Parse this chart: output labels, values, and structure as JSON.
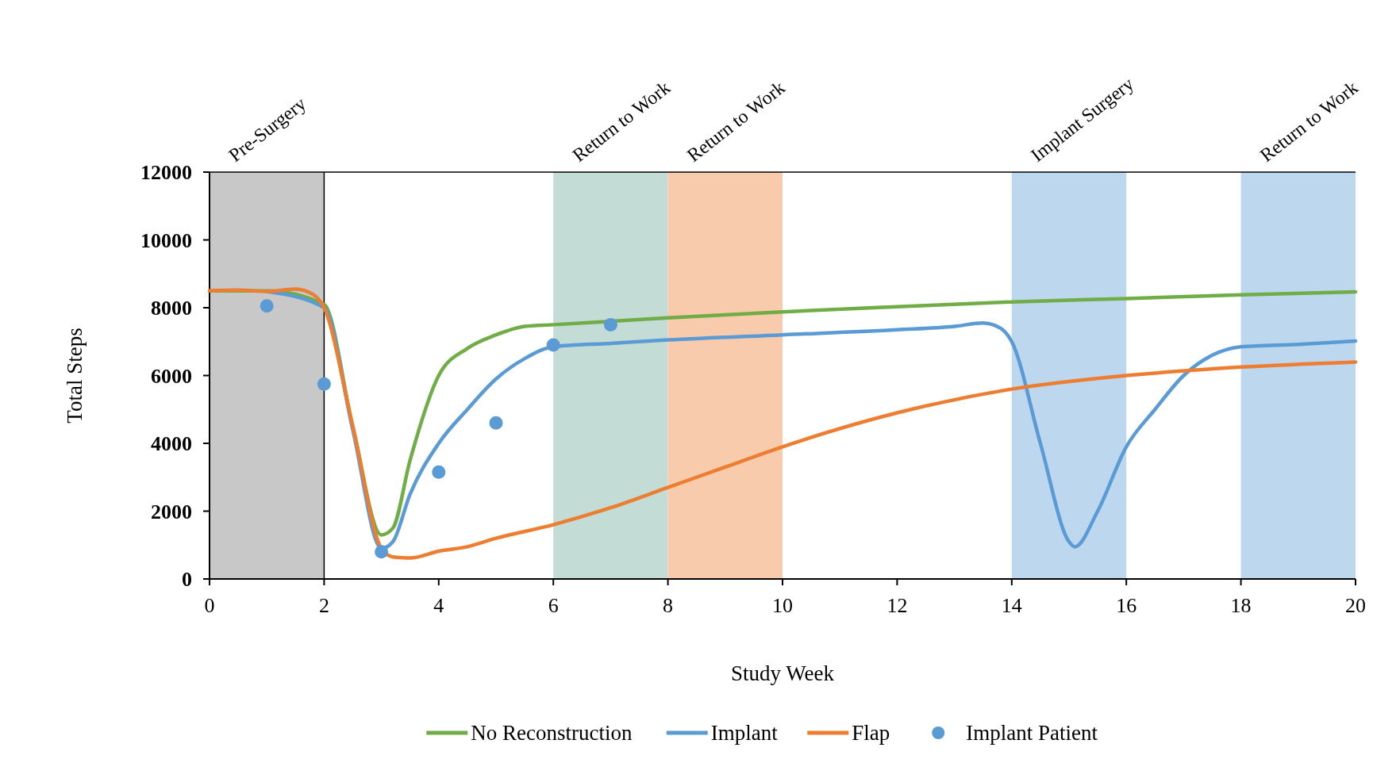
{
  "chart_data": {
    "type": "line",
    "xlabel": "Study Week",
    "ylabel": "Total Steps",
    "xlim": [
      0,
      20
    ],
    "xticks": [
      0,
      2,
      4,
      6,
      8,
      10,
      12,
      14,
      16,
      18,
      20
    ],
    "ylim": [
      0,
      12000
    ],
    "yticks": [
      0,
      2000,
      4000,
      6000,
      8000,
      10000,
      12000
    ],
    "grid": false,
    "legend": "bottom",
    "marker": "none",
    "line_style": "solid",
    "series": [
      {
        "name": "No Reconstruction",
        "color": "#70ad47",
        "x": [
          0,
          1,
          2,
          2.5,
          3,
          3.2,
          3.5,
          4,
          4.5,
          5,
          5.5,
          6,
          8,
          10,
          12,
          14,
          16,
          18,
          20
        ],
        "values": [
          8500,
          8500,
          8100,
          4500,
          1300,
          1500,
          3500,
          6000,
          6800,
          7200,
          7450,
          7500,
          7700,
          7880,
          8030,
          8170,
          8270,
          8380,
          8470
        ]
      },
      {
        "name": "Implant",
        "color": "#5b9bd5",
        "x": [
          1,
          2,
          2.5,
          3,
          3.2,
          3.5,
          4,
          4.5,
          5,
          5.5,
          6,
          7,
          8,
          10,
          12,
          13,
          13.5,
          13.8,
          14,
          14.5,
          15,
          15.1,
          15.5,
          16,
          16.5,
          17,
          17.5,
          18,
          19,
          20
        ],
        "values": [
          8480,
          8000,
          4400,
          900,
          1100,
          2500,
          4000,
          5000,
          5900,
          6500,
          6850,
          6950,
          7050,
          7200,
          7350,
          7450,
          7550,
          7400,
          7000,
          4000,
          1100,
          950,
          2000,
          3900,
          5000,
          6000,
          6600,
          6850,
          6920,
          7020
        ]
      },
      {
        "name": "Flap",
        "color": "#ed7d31",
        "x": [
          0,
          0.5,
          1,
          1.5,
          1.8,
          2,
          2.5,
          3,
          3.2,
          3.5,
          4,
          4.5,
          5,
          6,
          7,
          8,
          9,
          10,
          12,
          14,
          16,
          18,
          20
        ],
        "values": [
          8500,
          8520,
          8480,
          8550,
          8400,
          8000,
          4500,
          900,
          650,
          620,
          820,
          950,
          1200,
          1600,
          2100,
          2700,
          3300,
          3900,
          4900,
          5600,
          6000,
          6250,
          6400
        ]
      },
      {
        "name": "Implant Patient",
        "type": "scatter",
        "marker": "circle",
        "color": "#5b9bd5",
        "x": [
          1,
          2,
          3,
          4,
          5,
          6,
          7
        ],
        "values": [
          8050,
          5750,
          800,
          3150,
          4600,
          6900,
          7500
        ]
      }
    ],
    "bands": [
      {
        "axis": "x",
        "from": 0,
        "to": 2,
        "label": "Pre-Surgery",
        "color": "#c8c8c8"
      },
      {
        "axis": "x",
        "from": 6,
        "to": 8,
        "label": "Return to Work",
        "color": "#c3dcd6"
      },
      {
        "axis": "x",
        "from": 8,
        "to": 10,
        "label": "Return to Work",
        "color": "#f8cbad"
      },
      {
        "axis": "x",
        "from": 14,
        "to": 16,
        "label": "Implant  Surgery",
        "color": "#bdd7ee"
      },
      {
        "axis": "x",
        "from": 18,
        "to": 20,
        "label": "Return to Work",
        "color": "#bdd7ee"
      }
    ],
    "ref_lines": [
      {
        "axis": "x",
        "value": 2,
        "color": "#000000"
      }
    ]
  }
}
